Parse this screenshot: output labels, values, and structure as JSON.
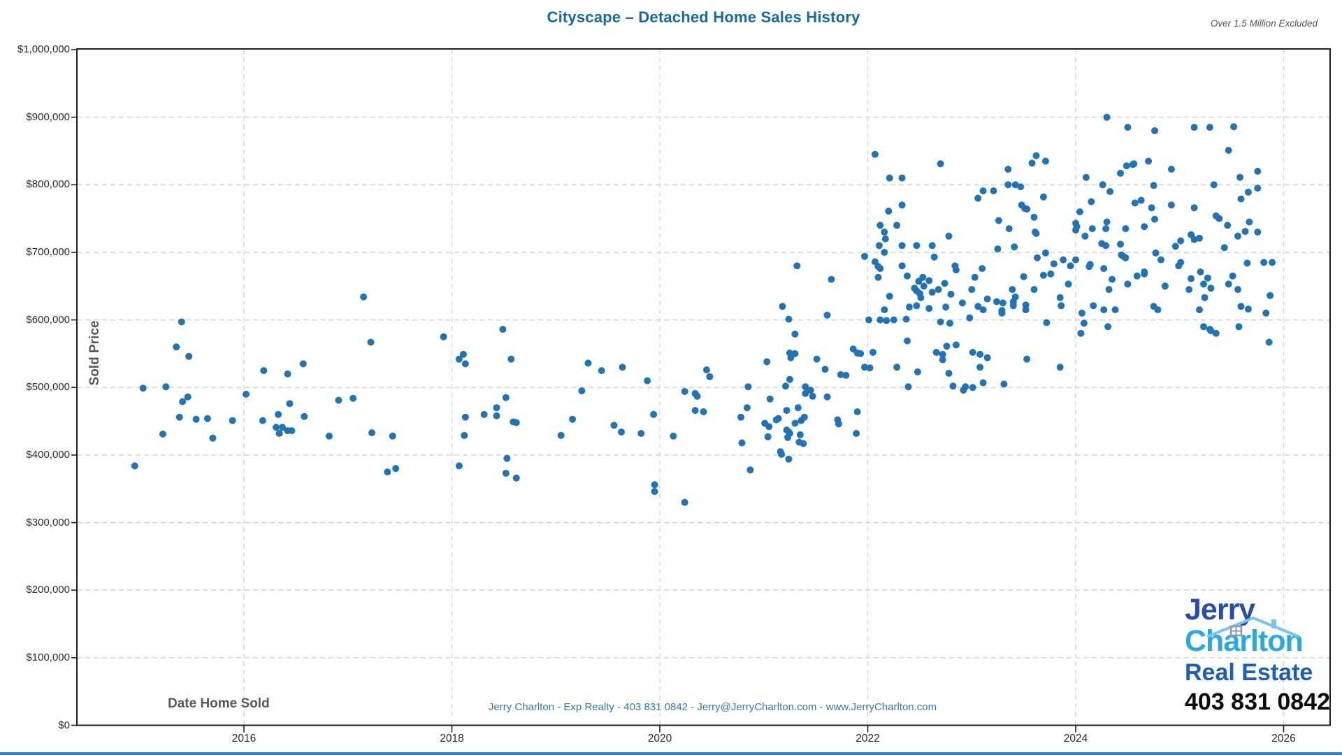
{
  "title": "Cityscape – Detached Home Sales History",
  "note": "Over 1.5 Million Excluded",
  "contact_line": "Jerry Charlton - Exp Realty - 403 831 0842 - Jerry@JerryCharlton.com - www.JerryCharlton.com",
  "logo": {
    "line1": "Jerry",
    "line2": "Charlton",
    "line3": "Real Estate",
    "phone": "403 831 0842",
    "roof_icon": "house-roof-icon"
  },
  "colors": {
    "title": "#176a9f",
    "note": "#555555",
    "point": "#2173b4",
    "grid": "#cccccc",
    "axis": "#1f1f1f",
    "tick_text": "#2b2b2b",
    "axis_title": "#595959",
    "contact": "#3178b8",
    "logo_jerry": "#2a4da6",
    "logo_charlton": "#2ba7e2",
    "logo_realestate": "#1d5fb8",
    "logo_phone": "#0c0c0c",
    "bottom_bar": "#3b82c4"
  },
  "chart_data": {
    "type": "scatter",
    "title": "Cityscape – Detached Home Sales History",
    "xlabel": "Date Home Sold",
    "ylabel": "Sold Price",
    "series_name": "Sold Price",
    "grid": "dashed",
    "legend": "none",
    "xlim": [
      2014.4,
      2026.45
    ],
    "ylim_dollars": [
      0,
      1000000
    ],
    "x_ticks": [
      {
        "value": 2016,
        "label": "2016"
      },
      {
        "value": 2018,
        "label": "2018"
      },
      {
        "value": 2020,
        "label": "2020"
      },
      {
        "value": 2022,
        "label": "2022"
      },
      {
        "value": 2024,
        "label": "2024"
      },
      {
        "value": 2026,
        "label": "2026"
      }
    ],
    "y_ticks": [
      {
        "value_k": 0,
        "label": "$0"
      },
      {
        "value_k": 100,
        "label": "$100,000"
      },
      {
        "value_k": 200,
        "label": "$200,000"
      },
      {
        "value_k": 300,
        "label": "$300,000"
      },
      {
        "value_k": 400,
        "label": "$400,000"
      },
      {
        "value_k": 500,
        "label": "$500,000"
      },
      {
        "value_k": 600,
        "label": "$600,000"
      },
      {
        "value_k": 700,
        "label": "$700,000"
      },
      {
        "value_k": 800,
        "label": "$800,000"
      },
      {
        "value_k": 900,
        "label": "$900,000"
      },
      {
        "value_k": 1000,
        "label": "$1,000,000"
      }
    ],
    "point_unit": "[year_decimal, sold_price_in_thousands_USD]",
    "points": [
      [
        2014.95,
        384
      ],
      [
        2015.03,
        499
      ],
      [
        2015.22,
        431
      ],
      [
        2015.25,
        501
      ],
      [
        2015.35,
        560
      ],
      [
        2015.38,
        456
      ],
      [
        2015.4,
        597
      ],
      [
        2015.41,
        479
      ],
      [
        2015.46,
        486
      ],
      [
        2015.47,
        546
      ],
      [
        2015.54,
        453
      ],
      [
        2015.65,
        454
      ],
      [
        2015.7,
        425
      ],
      [
        2015.89,
        451
      ],
      [
        2016.02,
        490
      ],
      [
        2016.18,
        451
      ],
      [
        2016.19,
        525
      ],
      [
        2016.31,
        441
      ],
      [
        2016.33,
        460
      ],
      [
        2016.34,
        432
      ],
      [
        2016.37,
        441
      ],
      [
        2016.42,
        520
      ],
      [
        2016.42,
        436
      ],
      [
        2016.46,
        436
      ],
      [
        2016.44,
        476
      ],
      [
        2016.57,
        535
      ],
      [
        2016.58,
        457
      ],
      [
        2016.82,
        428
      ],
      [
        2016.91,
        481
      ],
      [
        2017.05,
        484
      ],
      [
        2017.15,
        634
      ],
      [
        2017.22,
        567
      ],
      [
        2017.23,
        433
      ],
      [
        2017.38,
        375
      ],
      [
        2017.43,
        428
      ],
      [
        2017.46,
        380
      ],
      [
        2017.92,
        575
      ],
      [
        2018.07,
        542
      ],
      [
        2018.07,
        384
      ],
      [
        2018.11,
        549
      ],
      [
        2018.12,
        429
      ],
      [
        2018.13,
        535
      ],
      [
        2018.13,
        456
      ],
      [
        2018.31,
        460
      ],
      [
        2018.43,
        470
      ],
      [
        2018.43,
        458
      ],
      [
        2018.49,
        586
      ],
      [
        2018.52,
        485
      ],
      [
        2018.52,
        373
      ],
      [
        2018.53,
        395
      ],
      [
        2018.57,
        542
      ],
      [
        2018.59,
        449
      ],
      [
        2018.62,
        448
      ],
      [
        2018.62,
        366
      ],
      [
        2019.05,
        429
      ],
      [
        2019.16,
        453
      ],
      [
        2019.25,
        495
      ],
      [
        2019.31,
        536
      ],
      [
        2019.44,
        525
      ],
      [
        2019.56,
        444
      ],
      [
        2019.63,
        434
      ],
      [
        2019.64,
        530
      ],
      [
        2019.82,
        432
      ],
      [
        2019.88,
        510
      ],
      [
        2019.94,
        460
      ],
      [
        2019.95,
        356
      ],
      [
        2019.95,
        346
      ],
      [
        2020.13,
        428
      ],
      [
        2020.24,
        494
      ],
      [
        2020.24,
        330
      ],
      [
        2020.34,
        491
      ],
      [
        2020.36,
        487
      ],
      [
        2020.34,
        466
      ],
      [
        2020.42,
        464
      ],
      [
        2020.45,
        526
      ],
      [
        2020.48,
        516
      ],
      [
        2020.78,
        456
      ],
      [
        2020.79,
        418
      ],
      [
        2020.84,
        470
      ],
      [
        2020.85,
        501
      ],
      [
        2020.87,
        378
      ],
      [
        2021.01,
        447
      ],
      [
        2021.03,
        538
      ],
      [
        2021.04,
        427
      ],
      [
        2021.05,
        442
      ],
      [
        2021.06,
        483
      ],
      [
        2021.12,
        452
      ],
      [
        2021.14,
        454
      ],
      [
        2021.16,
        405
      ],
      [
        2021.17,
        401
      ],
      [
        2021.18,
        620
      ],
      [
        2021.21,
        502
      ],
      [
        2021.22,
        466
      ],
      [
        2021.22,
        437
      ],
      [
        2021.23,
        426
      ],
      [
        2021.24,
        601
      ],
      [
        2021.24,
        434
      ],
      [
        2021.24,
        394
      ],
      [
        2021.25,
        551
      ],
      [
        2021.25,
        512
      ],
      [
        2021.25,
        432
      ],
      [
        2021.26,
        544
      ],
      [
        2021.3,
        579
      ],
      [
        2021.3,
        550
      ],
      [
        2021.3,
        447
      ],
      [
        2021.32,
        680
      ],
      [
        2021.33,
        470
      ],
      [
        2021.34,
        419
      ],
      [
        2021.35,
        430
      ],
      [
        2021.36,
        451
      ],
      [
        2021.38,
        417
      ],
      [
        2021.39,
        456
      ],
      [
        2021.4,
        501
      ],
      [
        2021.4,
        491
      ],
      [
        2021.42,
        496
      ],
      [
        2021.45,
        496
      ],
      [
        2021.47,
        487
      ],
      [
        2021.51,
        542
      ],
      [
        2021.59,
        527
      ],
      [
        2021.61,
        607
      ],
      [
        2021.61,
        486
      ],
      [
        2021.65,
        660
      ],
      [
        2021.71,
        452
      ],
      [
        2021.72,
        446
      ],
      [
        2021.74,
        519
      ],
      [
        2021.79,
        518
      ],
      [
        2021.86,
        557
      ],
      [
        2021.89,
        432
      ],
      [
        2021.9,
        551
      ],
      [
        2021.9,
        464
      ],
      [
        2021.93,
        550
      ],
      [
        2021.97,
        694
      ],
      [
        2021.97,
        530
      ],
      [
        2022.01,
        600
      ],
      [
        2022.02,
        529
      ],
      [
        2022.05,
        552
      ],
      [
        2022.07,
        845
      ],
      [
        2022.07,
        686
      ],
      [
        2022.1,
        663
      ],
      [
        2022.1,
        679
      ],
      [
        2022.11,
        710
      ],
      [
        2022.12,
        740
      ],
      [
        2022.12,
        676
      ],
      [
        2022.12,
        600
      ],
      [
        2022.16,
        730
      ],
      [
        2022.16,
        700
      ],
      [
        2022.16,
        615
      ],
      [
        2022.17,
        720
      ],
      [
        2022.18,
        599
      ],
      [
        2022.2,
        761
      ],
      [
        2022.21,
        810
      ],
      [
        2022.21,
        635
      ],
      [
        2022.25,
        600
      ],
      [
        2022.28,
        740
      ],
      [
        2022.28,
        530
      ],
      [
        2022.33,
        810
      ],
      [
        2022.33,
        770
      ],
      [
        2022.33,
        710
      ],
      [
        2022.33,
        680
      ],
      [
        2022.37,
        601
      ],
      [
        2022.38,
        665
      ],
      [
        2022.38,
        569
      ],
      [
        2022.39,
        501
      ],
      [
        2022.4,
        619
      ],
      [
        2022.45,
        647
      ],
      [
        2022.47,
        710
      ],
      [
        2022.47,
        643
      ],
      [
        2022.47,
        621
      ],
      [
        2022.48,
        523
      ],
      [
        2022.49,
        657
      ],
      [
        2022.5,
        639
      ],
      [
        2022.51,
        633
      ],
      [
        2022.53,
        663
      ],
      [
        2022.54,
        650
      ],
      [
        2022.59,
        658
      ],
      [
        2022.59,
        617
      ],
      [
        2022.62,
        710
      ],
      [
        2022.62,
        641
      ],
      [
        2022.64,
        693
      ],
      [
        2022.66,
        552
      ],
      [
        2022.68,
        645
      ],
      [
        2022.7,
        831
      ],
      [
        2022.7,
        597
      ],
      [
        2022.72,
        549
      ],
      [
        2022.72,
        541
      ],
      [
        2022.74,
        654
      ],
      [
        2022.75,
        619
      ],
      [
        2022.76,
        561
      ],
      [
        2022.78,
        724
      ],
      [
        2022.78,
        521
      ],
      [
        2022.79,
        595
      ],
      [
        2022.8,
        638
      ],
      [
        2022.82,
        502
      ],
      [
        2022.84,
        680
      ],
      [
        2022.85,
        674
      ],
      [
        2022.85,
        563
      ],
      [
        2022.91,
        625
      ],
      [
        2022.92,
        496
      ],
      [
        2022.94,
        501
      ],
      [
        2022.98,
        603
      ],
      [
        2023.0,
        645
      ],
      [
        2023.01,
        552
      ],
      [
        2023.01,
        500
      ],
      [
        2023.03,
        663
      ],
      [
        2023.06,
        780
      ],
      [
        2023.06,
        620
      ],
      [
        2023.08,
        549
      ],
      [
        2023.08,
        530
      ],
      [
        2023.1,
        676
      ],
      [
        2023.11,
        791
      ],
      [
        2023.11,
        615
      ],
      [
        2023.11,
        507
      ],
      [
        2023.15,
        631
      ],
      [
        2023.15,
        544
      ],
      [
        2023.21,
        791
      ],
      [
        2023.24,
        627
      ],
      [
        2023.25,
        705
      ],
      [
        2023.26,
        747
      ],
      [
        2023.29,
        614
      ],
      [
        2023.29,
        610
      ],
      [
        2023.3,
        625
      ],
      [
        2023.31,
        505
      ],
      [
        2023.35,
        823
      ],
      [
        2023.35,
        800
      ],
      [
        2023.36,
        735
      ],
      [
        2023.39,
        645
      ],
      [
        2023.4,
        627
      ],
      [
        2023.4,
        621
      ],
      [
        2023.41,
        708
      ],
      [
        2023.42,
        800
      ],
      [
        2023.42,
        634
      ],
      [
        2023.47,
        797
      ],
      [
        2023.48,
        770
      ],
      [
        2023.5,
        664
      ],
      [
        2023.51,
        765
      ],
      [
        2023.52,
        622
      ],
      [
        2023.52,
        615
      ],
      [
        2023.53,
        764
      ],
      [
        2023.53,
        542
      ],
      [
        2023.58,
        832
      ],
      [
        2023.6,
        752
      ],
      [
        2023.6,
        645
      ],
      [
        2023.61,
        730
      ],
      [
        2023.62,
        843
      ],
      [
        2023.62,
        728
      ],
      [
        2023.63,
        692
      ],
      [
        2023.69,
        782
      ],
      [
        2023.69,
        666
      ],
      [
        2023.71,
        835
      ],
      [
        2023.71,
        699
      ],
      [
        2023.72,
        596
      ],
      [
        2023.76,
        668
      ],
      [
        2023.79,
        683
      ],
      [
        2023.85,
        633
      ],
      [
        2023.85,
        530
      ],
      [
        2023.86,
        621
      ],
      [
        2023.88,
        689
      ],
      [
        2023.93,
        653
      ],
      [
        2023.95,
        680
      ],
      [
        2024.0,
        743
      ],
      [
        2024.0,
        733
      ],
      [
        2024.0,
        689
      ],
      [
        2024.01,
        738
      ],
      [
        2024.04,
        760
      ],
      [
        2024.05,
        580
      ],
      [
        2024.06,
        610
      ],
      [
        2024.08,
        595
      ],
      [
        2024.09,
        724
      ],
      [
        2024.1,
        811
      ],
      [
        2024.13,
        679
      ],
      [
        2024.14,
        682
      ],
      [
        2024.15,
        775
      ],
      [
        2024.16,
        735
      ],
      [
        2024.17,
        621
      ],
      [
        2024.25,
        713
      ],
      [
        2024.26,
        800
      ],
      [
        2024.27,
        676
      ],
      [
        2024.27,
        615
      ],
      [
        2024.29,
        735
      ],
      [
        2024.29,
        710
      ],
      [
        2024.3,
        900
      ],
      [
        2024.3,
        745
      ],
      [
        2024.31,
        590
      ],
      [
        2024.32,
        645
      ],
      [
        2024.33,
        790
      ],
      [
        2024.35,
        660
      ],
      [
        2024.38,
        615
      ],
      [
        2024.43,
        817
      ],
      [
        2024.43,
        712
      ],
      [
        2024.44,
        696
      ],
      [
        2024.46,
        694
      ],
      [
        2024.48,
        735
      ],
      [
        2024.48,
        692
      ],
      [
        2024.49,
        828
      ],
      [
        2024.5,
        885
      ],
      [
        2024.5,
        653
      ],
      [
        2024.55,
        830
      ],
      [
        2024.56,
        831
      ],
      [
        2024.57,
        773
      ],
      [
        2024.59,
        665
      ],
      [
        2024.63,
        777
      ],
      [
        2024.66,
        738
      ],
      [
        2024.66,
        671
      ],
      [
        2024.66,
        668
      ],
      [
        2024.7,
        835
      ],
      [
        2024.73,
        766
      ],
      [
        2024.75,
        799
      ],
      [
        2024.75,
        620
      ],
      [
        2024.76,
        880
      ],
      [
        2024.76,
        749
      ],
      [
        2024.77,
        699
      ],
      [
        2024.79,
        615
      ],
      [
        2024.82,
        689
      ],
      [
        2024.86,
        650
      ],
      [
        2024.92,
        823
      ],
      [
        2024.92,
        770
      ],
      [
        2024.96,
        709
      ],
      [
        2024.99,
        680
      ],
      [
        2025.01,
        717
      ],
      [
        2025.01,
        685
      ],
      [
        2025.09,
        645
      ],
      [
        2025.11,
        726
      ],
      [
        2025.11,
        661
      ],
      [
        2025.14,
        885
      ],
      [
        2025.14,
        766
      ],
      [
        2025.14,
        719
      ],
      [
        2025.19,
        721
      ],
      [
        2025.19,
        615
      ],
      [
        2025.2,
        671
      ],
      [
        2025.23,
        653
      ],
      [
        2025.23,
        590
      ],
      [
        2025.24,
        633
      ],
      [
        2025.27,
        662
      ],
      [
        2025.29,
        885
      ],
      [
        2025.29,
        586
      ],
      [
        2025.3,
        647
      ],
      [
        2025.3,
        584
      ],
      [
        2025.33,
        800
      ],
      [
        2025.35,
        754
      ],
      [
        2025.35,
        580
      ],
      [
        2025.38,
        750
      ],
      [
        2025.43,
        707
      ],
      [
        2025.46,
        740
      ],
      [
        2025.47,
        851
      ],
      [
        2025.47,
        653
      ],
      [
        2025.51,
        665
      ],
      [
        2025.52,
        886
      ],
      [
        2025.56,
        724
      ],
      [
        2025.56,
        645
      ],
      [
        2025.57,
        590
      ],
      [
        2025.58,
        811
      ],
      [
        2025.59,
        779
      ],
      [
        2025.59,
        620
      ],
      [
        2025.63,
        731
      ],
      [
        2025.65,
        684
      ],
      [
        2025.66,
        789
      ],
      [
        2025.66,
        616
      ],
      [
        2025.67,
        745
      ],
      [
        2025.75,
        820
      ],
      [
        2025.75,
        795
      ],
      [
        2025.75,
        730
      ],
      [
        2025.81,
        685
      ],
      [
        2025.83,
        610
      ],
      [
        2025.86,
        567
      ],
      [
        2025.87,
        636
      ],
      [
        2025.89,
        685
      ]
    ]
  }
}
